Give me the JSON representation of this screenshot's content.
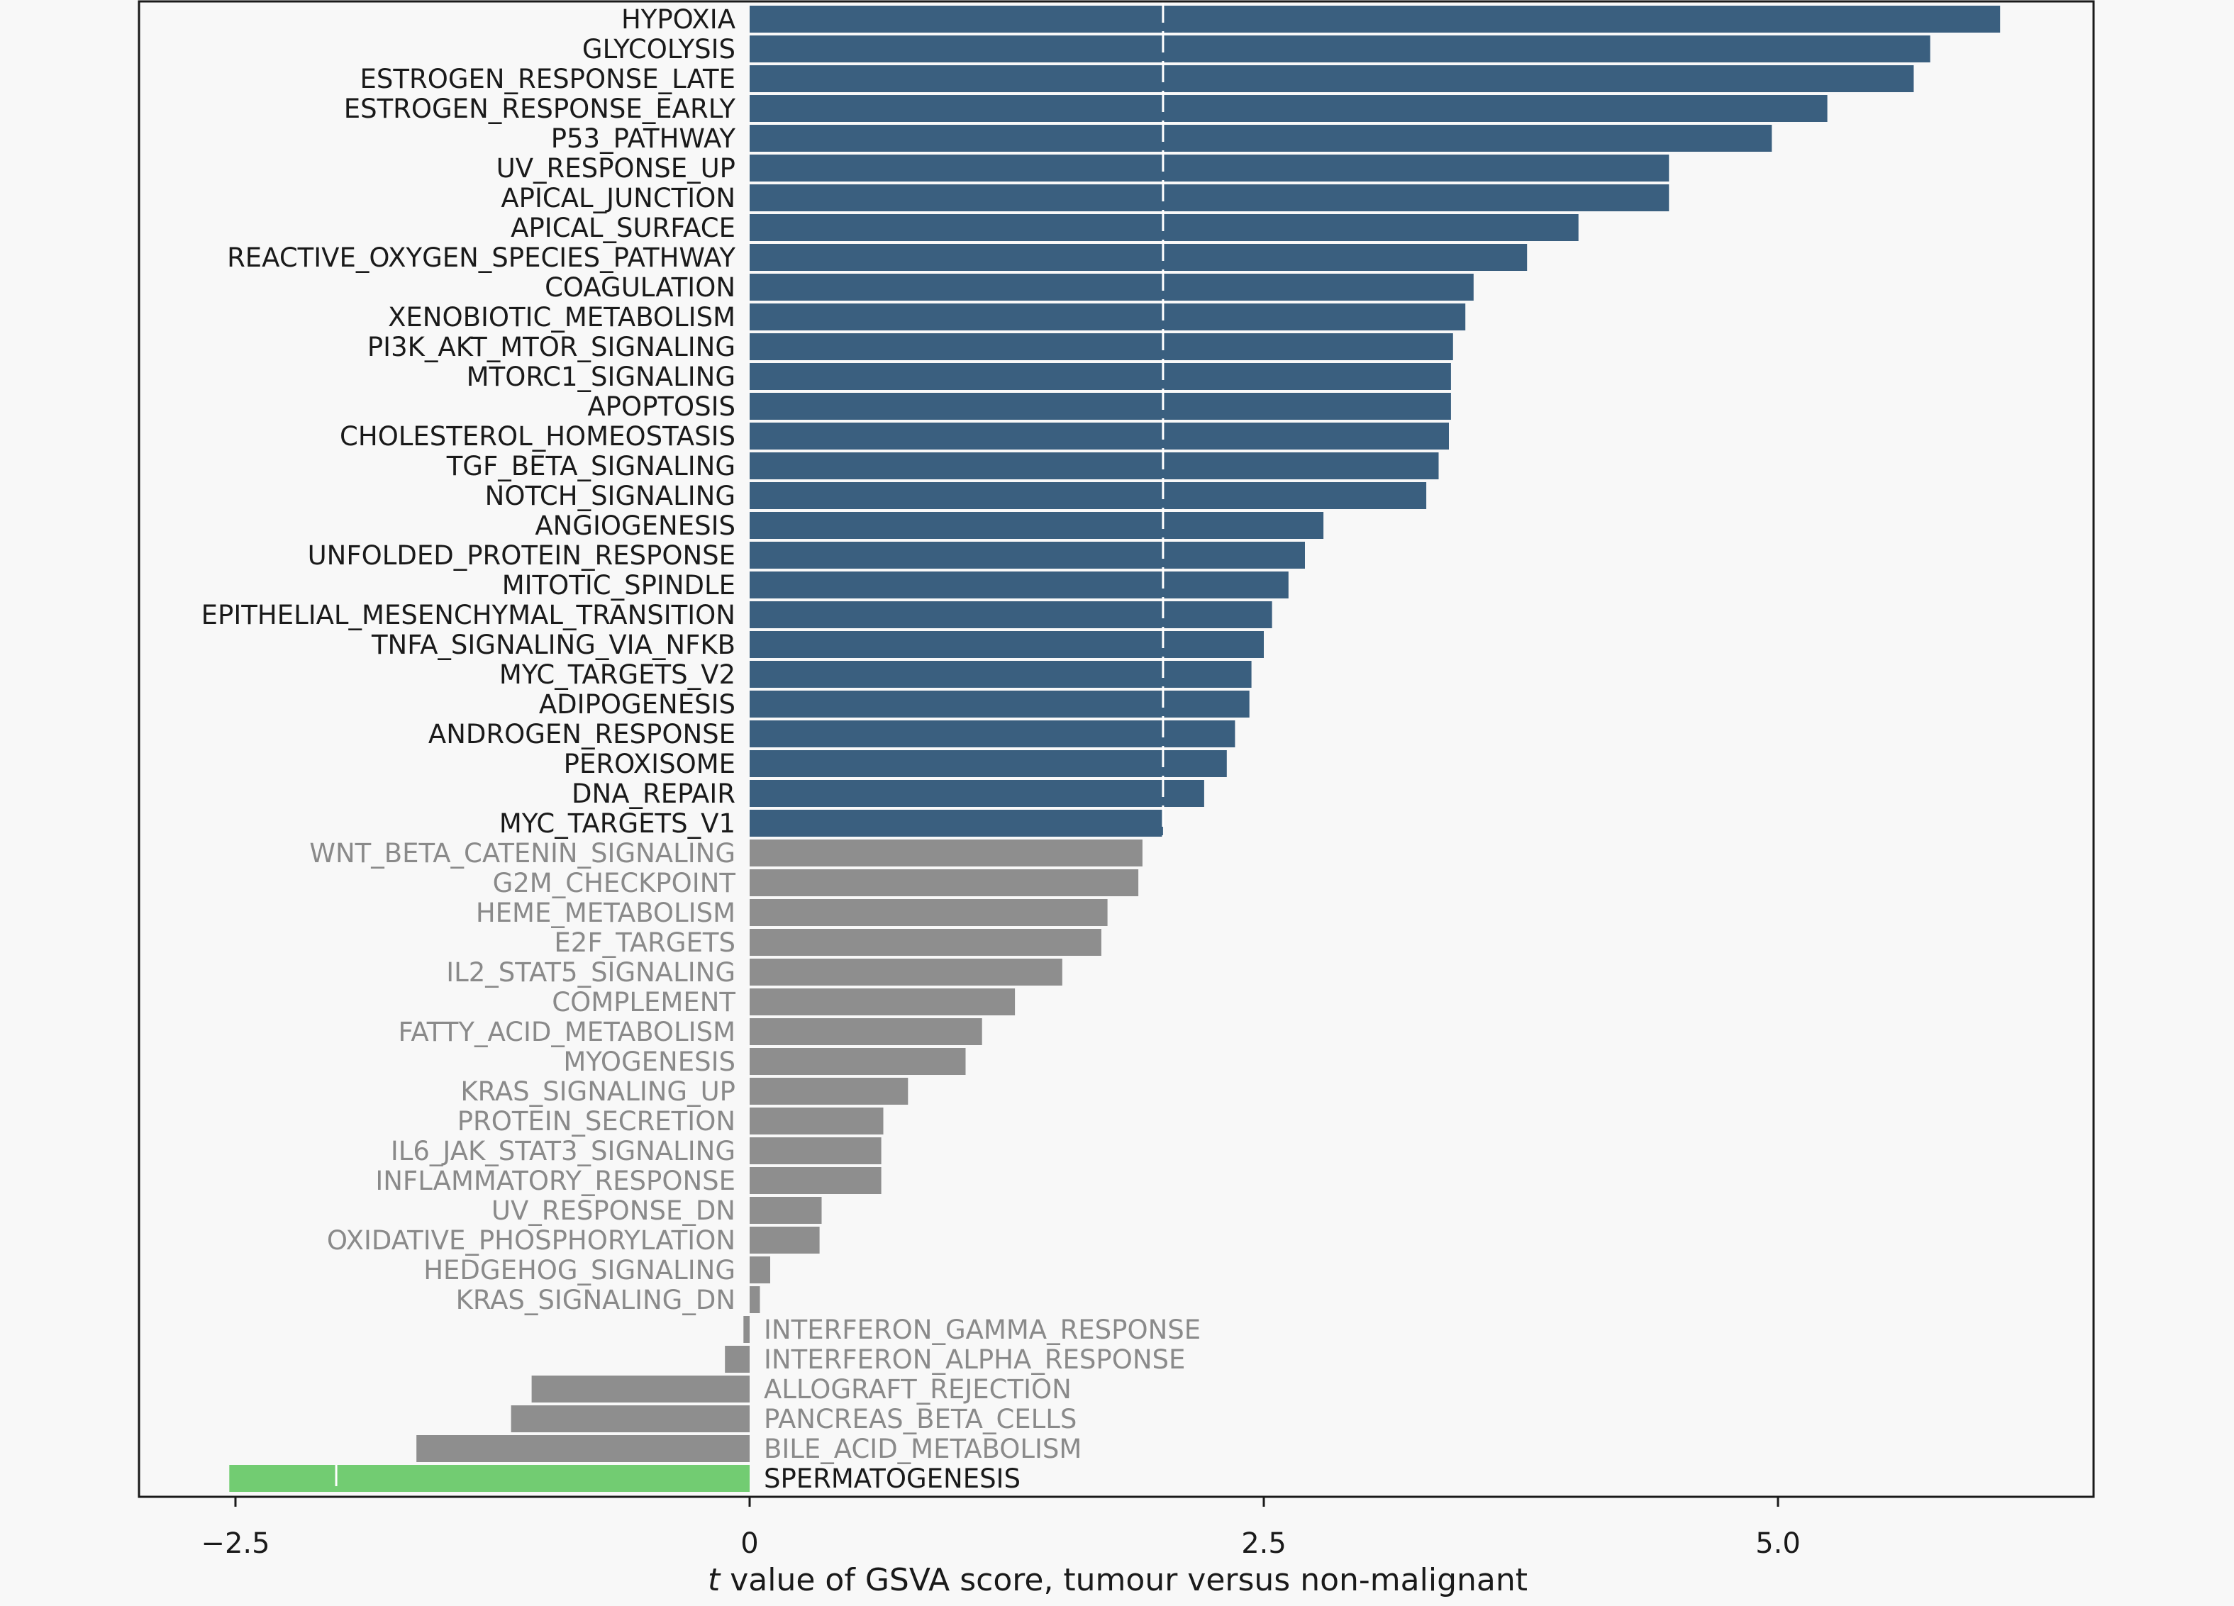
{
  "chart_data": {
    "type": "bar",
    "orientation": "horizontal",
    "xlabel_prefix": "t",
    "xlabel_rest": " value of GSVA score, tumour versus non-malignant",
    "xlim": [
      -2.95,
      6.5
    ],
    "xticks": [
      {
        "value": -2.5,
        "label": "−2.5"
      },
      {
        "value": 0,
        "label": "0"
      },
      {
        "value": 2.5,
        "label": "2.5"
      },
      {
        "value": 5.0,
        "label": "5.0"
      }
    ],
    "threshold": 2.01,
    "colors": {
      "up_significant": "#3a5f7f",
      "not_significant": "#8e8e8e",
      "down_significant": "#72cc72",
      "label_significant": "#1a1a1a",
      "label_not_significant": "#8a8a8a",
      "background": "#f8f8f8"
    },
    "bars": [
      {
        "label": "HYPOXIA",
        "value": 6.08,
        "group": "up_significant"
      },
      {
        "label": "GLYCOLYSIS",
        "value": 5.74,
        "group": "up_significant"
      },
      {
        "label": "ESTROGEN_RESPONSE_LATE",
        "value": 5.66,
        "group": "up_significant"
      },
      {
        "label": "ESTROGEN_RESPONSE_EARLY",
        "value": 5.24,
        "group": "up_significant"
      },
      {
        "label": "P53_PATHWAY",
        "value": 4.97,
        "group": "up_significant"
      },
      {
        "label": "UV_RESPONSE_UP",
        "value": 4.47,
        "group": "up_significant"
      },
      {
        "label": "APICAL_JUNCTION",
        "value": 4.47,
        "group": "up_significant"
      },
      {
        "label": "APICAL_SURFACE",
        "value": 4.03,
        "group": "up_significant"
      },
      {
        "label": "REACTIVE_OXYGEN_SPECIES_PATHWAY",
        "value": 3.78,
        "group": "up_significant"
      },
      {
        "label": "COAGULATION",
        "value": 3.52,
        "group": "up_significant"
      },
      {
        "label": "XENOBIOTIC_METABOLISM",
        "value": 3.48,
        "group": "up_significant"
      },
      {
        "label": "PI3K_AKT_MTOR_SIGNALING",
        "value": 3.42,
        "group": "up_significant"
      },
      {
        "label": "MTORC1_SIGNALING",
        "value": 3.41,
        "group": "up_significant"
      },
      {
        "label": "APOPTOSIS",
        "value": 3.41,
        "group": "up_significant"
      },
      {
        "label": "CHOLESTEROL_HOMEOSTASIS",
        "value": 3.4,
        "group": "up_significant"
      },
      {
        "label": "TGF_BETA_SIGNALING",
        "value": 3.35,
        "group": "up_significant"
      },
      {
        "label": "NOTCH_SIGNALING",
        "value": 3.29,
        "group": "up_significant"
      },
      {
        "label": "ANGIOGENESIS",
        "value": 2.79,
        "group": "up_significant"
      },
      {
        "label": "UNFOLDED_PROTEIN_RESPONSE",
        "value": 2.7,
        "group": "up_significant"
      },
      {
        "label": "MITOTIC_SPINDLE",
        "value": 2.62,
        "group": "up_significant"
      },
      {
        "label": "EPITHELIAL_MESENCHYMAL_TRANSITION",
        "value": 2.54,
        "group": "up_significant"
      },
      {
        "label": "TNFA_SIGNALING_VIA_NFKB",
        "value": 2.5,
        "group": "up_significant"
      },
      {
        "label": "MYC_TARGETS_V2",
        "value": 2.44,
        "group": "up_significant"
      },
      {
        "label": "ADIPOGENESIS",
        "value": 2.43,
        "group": "up_significant"
      },
      {
        "label": "ANDROGEN_RESPONSE",
        "value": 2.36,
        "group": "up_significant"
      },
      {
        "label": "PEROXISOME",
        "value": 2.32,
        "group": "up_significant"
      },
      {
        "label": "DNA_REPAIR",
        "value": 2.21,
        "group": "up_significant"
      },
      {
        "label": "MYC_TARGETS_V1",
        "value": 2.01,
        "group": "up_significant"
      },
      {
        "label": "WNT_BETA_CATENIN_SIGNALING",
        "value": 1.91,
        "group": "not_significant"
      },
      {
        "label": "G2M_CHECKPOINT",
        "value": 1.89,
        "group": "not_significant"
      },
      {
        "label": "HEME_METABOLISM",
        "value": 1.74,
        "group": "not_significant"
      },
      {
        "label": "E2F_TARGETS",
        "value": 1.71,
        "group": "not_significant"
      },
      {
        "label": "IL2_STAT5_SIGNALING",
        "value": 1.52,
        "group": "not_significant"
      },
      {
        "label": "COMPLEMENT",
        "value": 1.29,
        "group": "not_significant"
      },
      {
        "label": "FATTY_ACID_METABOLISM",
        "value": 1.13,
        "group": "not_significant"
      },
      {
        "label": "MYOGENESIS",
        "value": 1.05,
        "group": "not_significant"
      },
      {
        "label": "KRAS_SIGNALING_UP",
        "value": 0.77,
        "group": "not_significant"
      },
      {
        "label": "PROTEIN_SECRETION",
        "value": 0.65,
        "group": "not_significant"
      },
      {
        "label": "IL6_JAK_STAT3_SIGNALING",
        "value": 0.64,
        "group": "not_significant"
      },
      {
        "label": "INFLAMMATORY_RESPONSE",
        "value": 0.64,
        "group": "not_significant"
      },
      {
        "label": "UV_RESPONSE_DN",
        "value": 0.35,
        "group": "not_significant"
      },
      {
        "label": "OXIDATIVE_PHOSPHORYLATION",
        "value": 0.34,
        "group": "not_significant"
      },
      {
        "label": "HEDGEHOG_SIGNALING",
        "value": 0.1,
        "group": "not_significant"
      },
      {
        "label": "KRAS_SIGNALING_DN",
        "value": 0.05,
        "group": "not_significant"
      },
      {
        "label": "INTERFERON_GAMMA_RESPONSE",
        "value": -0.03,
        "group": "not_significant"
      },
      {
        "label": "INTERFERON_ALPHA_RESPONSE",
        "value": -0.12,
        "group": "not_significant"
      },
      {
        "label": "ALLOGRAFT_REJECTION",
        "value": -1.06,
        "group": "not_significant"
      },
      {
        "label": "PANCREAS_BETA_CELLS",
        "value": -1.16,
        "group": "not_significant"
      },
      {
        "label": "BILE_ACID_METABOLISM",
        "value": -1.62,
        "group": "not_significant"
      },
      {
        "label": "SPERMATOGENESIS",
        "value": -2.53,
        "group": "down_significant"
      }
    ]
  }
}
